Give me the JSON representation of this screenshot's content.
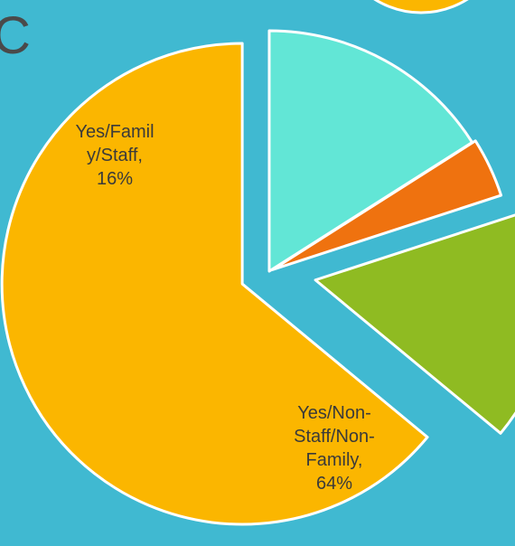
{
  "chart_data": {
    "type": "pie",
    "title": "C",
    "categories": [
      null,
      null,
      "Yes/Family/Staff,",
      "Yes/Non-Staff/Non-Family,"
    ],
    "values": [
      16,
      4,
      16,
      64
    ],
    "value_labels": [
      null,
      null,
      "16%",
      "64%"
    ],
    "colors": [
      "#62e6d6",
      "#ef720f",
      "#8fbb22",
      "#fbb600"
    ]
  }
}
